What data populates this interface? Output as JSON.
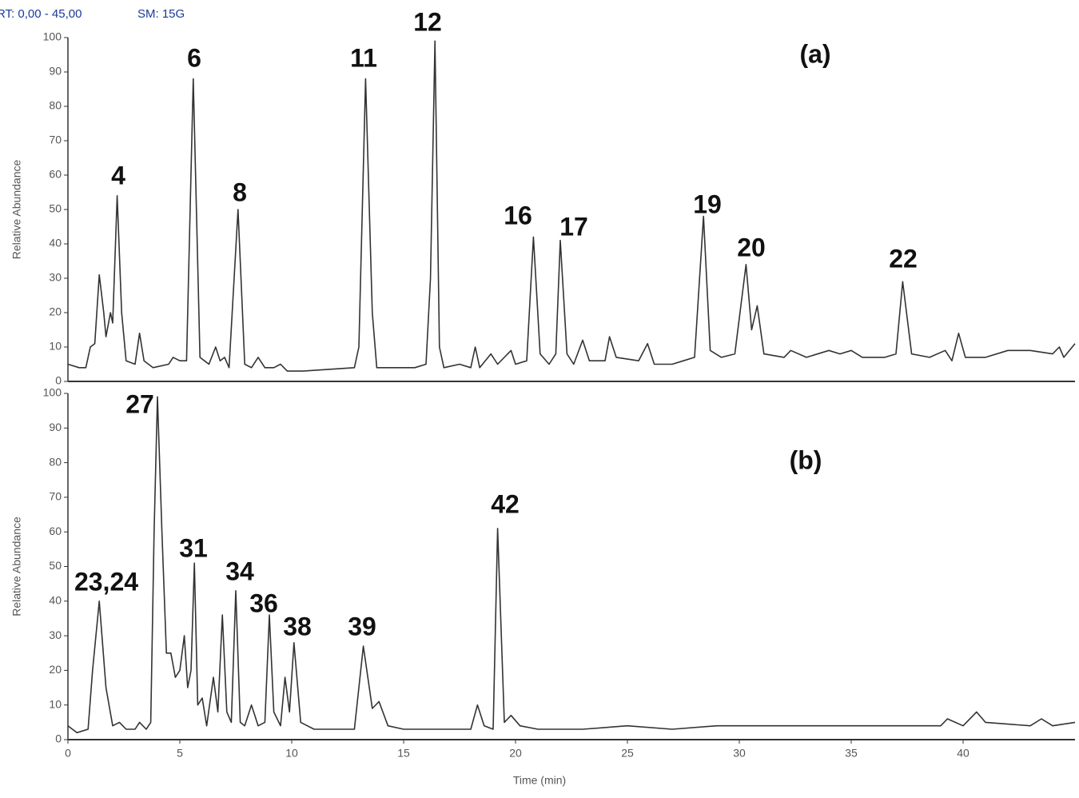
{
  "header": {
    "range": "RT: 0,00 - 45,00",
    "smoothing": "SM: 15G"
  },
  "chart_data": [
    {
      "type": "line",
      "panel_label": "(a)",
      "ylabel": "Relative Abundance",
      "annotations": [
        "4",
        "6",
        "8",
        "11",
        "12",
        "16",
        "17",
        "19",
        "20",
        "22"
      ],
      "xlim": [
        0,
        45
      ],
      "ylim": [
        0,
        100
      ],
      "yticks": [
        0,
        10,
        20,
        30,
        40,
        50,
        60,
        70,
        80,
        90,
        100
      ],
      "color": "#333333",
      "x": [
        0,
        0.5,
        0.8,
        1.0,
        1.2,
        1.4,
        1.6,
        1.7,
        1.9,
        2.0,
        2.2,
        2.4,
        2.6,
        3.0,
        3.2,
        3.4,
        3.8,
        4.5,
        4.7,
        5.0,
        5.3,
        5.6,
        5.9,
        6.3,
        6.6,
        6.8,
        7.0,
        7.2,
        7.6,
        7.9,
        8.2,
        8.5,
        8.8,
        9.2,
        9.5,
        9.8,
        10.5,
        12.8,
        13.0,
        13.3,
        13.6,
        13.8,
        15.5,
        16.0,
        16.2,
        16.4,
        16.6,
        16.8,
        17.5,
        18.0,
        18.2,
        18.4,
        18.9,
        19.2,
        19.8,
        20.0,
        20.5,
        20.8,
        21.1,
        21.5,
        21.8,
        22.0,
        22.3,
        22.6,
        23.0,
        23.3,
        24.0,
        24.2,
        24.5,
        25.5,
        25.9,
        26.2,
        27.0,
        27.5,
        28.0,
        28.4,
        28.7,
        29.2,
        29.8,
        30.3,
        30.55,
        30.8,
        31.1,
        32.0,
        32.3,
        33,
        34,
        34.5,
        35,
        35.5,
        36.5,
        37.0,
        37.3,
        37.7,
        38.5,
        39.2,
        39.5,
        39.8,
        40.1,
        41,
        42,
        43,
        44,
        44.3,
        44.5,
        45
      ],
      "values": [
        5,
        4,
        4,
        10,
        11,
        31,
        20,
        13,
        20,
        17,
        54,
        20,
        6,
        5,
        14,
        6,
        4,
        5,
        7,
        6,
        6,
        88,
        7,
        5,
        10,
        6,
        7,
        4,
        50,
        5,
        4,
        7,
        4,
        4,
        5,
        3,
        3,
        4,
        10,
        88,
        20,
        4,
        4,
        5,
        30,
        99,
        10,
        4,
        5,
        4,
        10,
        4,
        8,
        5,
        9,
        5,
        6,
        42,
        8,
        5,
        8,
        41,
        8,
        5,
        12,
        6,
        6,
        13,
        7,
        6,
        11,
        5,
        5,
        6,
        7,
        48,
        9,
        7,
        8,
        34,
        15,
        22,
        8,
        7,
        9,
        7,
        9,
        8,
        9,
        7,
        7,
        8,
        29,
        8,
        7,
        9,
        6,
        14,
        7,
        7,
        9,
        9,
        8,
        10,
        7,
        11
      ]
    },
    {
      "type": "line",
      "panel_label": "(b)",
      "ylabel": "Relative Abundance",
      "xlabel": "Time (min)",
      "annotations": [
        "23,24",
        "27",
        "31",
        "34",
        "36",
        "38",
        "39",
        "42"
      ],
      "xlim": [
        0,
        45
      ],
      "ylim": [
        0,
        100
      ],
      "yticks": [
        0,
        10,
        20,
        30,
        40,
        50,
        60,
        70,
        80,
        90,
        100
      ],
      "xticks": [
        0,
        5,
        10,
        15,
        20,
        25,
        30,
        35,
        40
      ],
      "color": "#333333",
      "x": [
        0,
        0.4,
        0.9,
        1.1,
        1.4,
        1.7,
        2.0,
        2.3,
        2.6,
        3.0,
        3.2,
        3.5,
        3.7,
        3.85,
        4.0,
        4.2,
        4.4,
        4.6,
        4.8,
        5.0,
        5.2,
        5.35,
        5.5,
        5.65,
        5.8,
        6.0,
        6.2,
        6.5,
        6.7,
        6.9,
        7.1,
        7.3,
        7.5,
        7.7,
        7.9,
        8.2,
        8.5,
        8.8,
        9.0,
        9.2,
        9.5,
        9.7,
        9.9,
        10.1,
        10.4,
        11,
        12.8,
        13.2,
        13.6,
        13.9,
        14.3,
        15,
        17,
        18,
        18.3,
        18.6,
        19.0,
        19.2,
        19.5,
        19.8,
        20.2,
        21,
        23,
        25,
        27,
        29,
        31,
        33,
        35,
        37,
        39,
        39.3,
        40,
        40.6,
        41,
        43,
        43.5,
        44,
        45
      ],
      "values": [
        4,
        2,
        3,
        20,
        40,
        15,
        4,
        5,
        3,
        3,
        5,
        3,
        5,
        60,
        99,
        60,
        25,
        25,
        18,
        20,
        30,
        15,
        20,
        51,
        10,
        12,
        4,
        18,
        8,
        36,
        8,
        5,
        43,
        5,
        4,
        10,
        4,
        5,
        36,
        8,
        4,
        18,
        8,
        28,
        5,
        3,
        3,
        27,
        9,
        11,
        4,
        3,
        3,
        3,
        10,
        4,
        3,
        61,
        5,
        7,
        4,
        3,
        3,
        4,
        3,
        4,
        4,
        4,
        4,
        4,
        4,
        6,
        4,
        8,
        5,
        4,
        6,
        4,
        5
      ]
    }
  ]
}
